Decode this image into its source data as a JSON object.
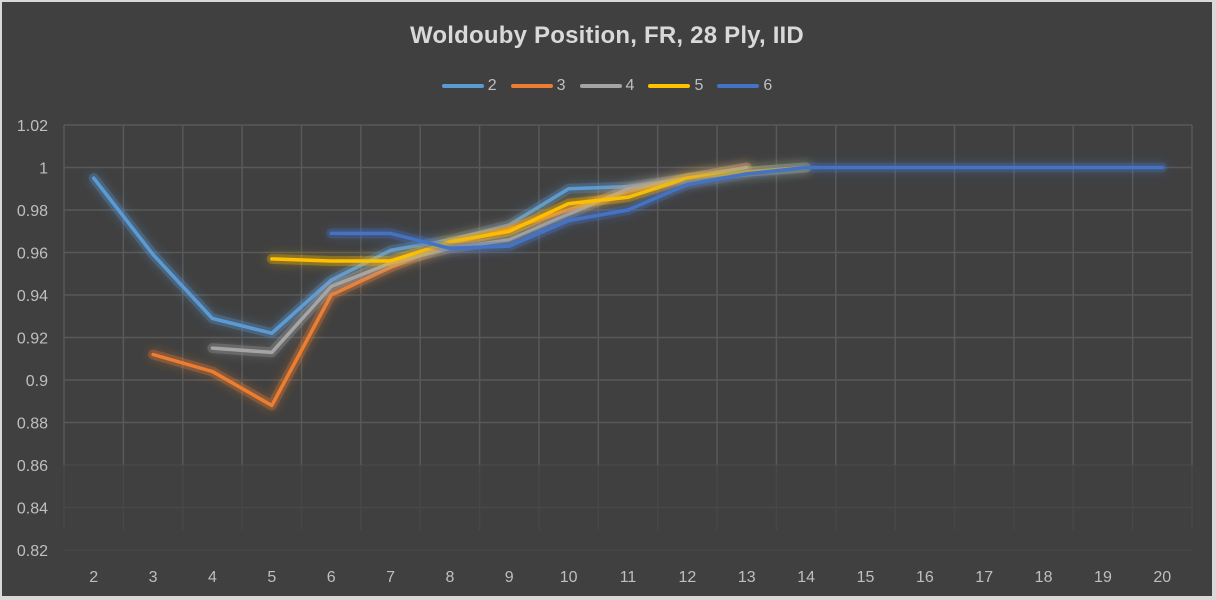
{
  "chart_data": {
    "type": "line",
    "title": "Woldouby Position, FR, 28 Ply, IID",
    "xlabel": "",
    "ylabel": "",
    "categories": [
      "2",
      "3",
      "4",
      "5",
      "6",
      "7",
      "8",
      "9",
      "10",
      "11",
      "12",
      "13",
      "14",
      "15",
      "16",
      "17",
      "18",
      "19",
      "20"
    ],
    "ylim": [
      0.82,
      1.02
    ],
    "yticks": [
      "0.82",
      "0.84",
      "0.86",
      "0.88",
      "0.9",
      "0.92",
      "0.94",
      "0.96",
      "0.98",
      "1",
      "1.02"
    ],
    "grid": true,
    "legend_position": "top",
    "series": [
      {
        "name": "2",
        "color": "#5b9bd5",
        "values": [
          0.995,
          0.959,
          0.929,
          0.922,
          0.947,
          0.961,
          0.966,
          0.973,
          0.99,
          0.991,
          0.995,
          0.998,
          1.0,
          null,
          null,
          null,
          null,
          null,
          null
        ]
      },
      {
        "name": "3",
        "color": "#ed7d31",
        "values": [
          null,
          0.912,
          0.904,
          0.888,
          0.94,
          0.953,
          0.964,
          0.971,
          0.98,
          0.989,
          0.995,
          1.0,
          null,
          null,
          null,
          null,
          null,
          null,
          null
        ]
      },
      {
        "name": "4",
        "color": "#a5a5a5",
        "values": [
          null,
          null,
          0.915,
          0.913,
          0.944,
          0.955,
          0.962,
          0.966,
          0.978,
          0.99,
          0.995,
          1.0,
          null,
          null,
          null,
          null,
          null,
          null,
          null
        ]
      },
      {
        "name": "5",
        "color": "#ffc000",
        "values": [
          null,
          null,
          null,
          0.957,
          0.956,
          0.956,
          0.965,
          0.97,
          0.983,
          0.986,
          0.995,
          0.998,
          1.0,
          null,
          null,
          null,
          null,
          null,
          null
        ]
      },
      {
        "name": "6",
        "color": "#4472c4",
        "values": [
          null,
          null,
          null,
          null,
          0.969,
          0.969,
          0.962,
          0.963,
          0.975,
          0.98,
          0.992,
          0.997,
          1.0,
          1.0,
          1.0,
          1.0,
          1.0,
          1.0,
          1.0
        ]
      }
    ]
  },
  "colors": {
    "background": "#404040",
    "frame": "#d9d9d9",
    "gridline": "#595959",
    "text": "#bfbfbf",
    "title": "#d9d9d9"
  }
}
